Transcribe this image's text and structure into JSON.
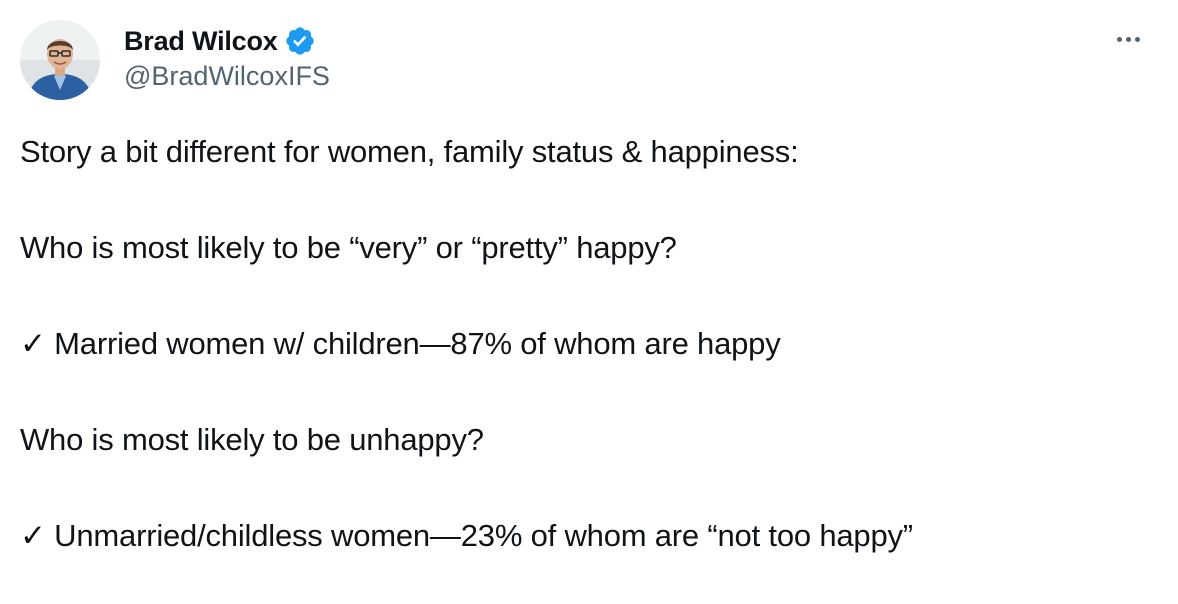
{
  "author": {
    "display_name": "Brad Wilcox",
    "handle": "@BradWilcoxIFS",
    "verified": true,
    "verified_icon": "verified-badge-icon",
    "avatar_icon": "avatar-photo"
  },
  "more_icon": "more-options-icon",
  "colors": {
    "text": "#0f1419",
    "secondary_text": "#536471",
    "verified_blue": "#1d9bf0",
    "background": "#ffffff"
  },
  "tweet": {
    "paragraphs": [
      "Story a bit different for women, family status & happiness:",
      "Who is most likely to be “very” or “pretty” happy?",
      "✓ Married women w/ children—87% of whom are happy",
      "Who is most likely to be unhappy?",
      "✓ Unmarried/childless women—23% of whom are “not too happy”"
    ]
  }
}
